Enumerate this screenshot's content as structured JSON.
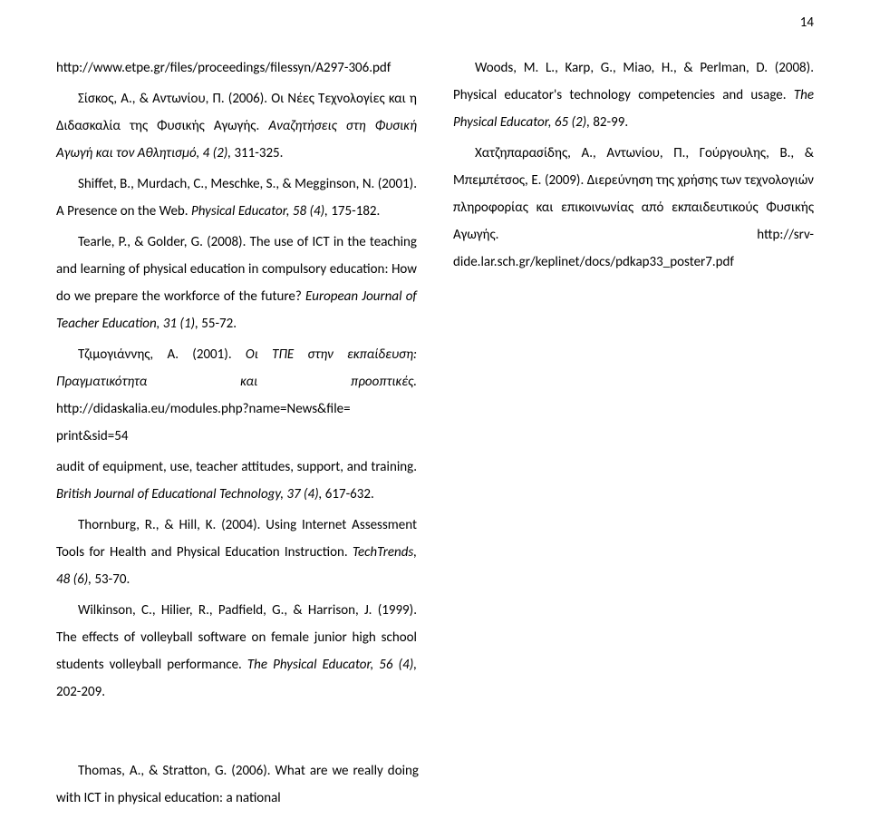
{
  "page_number": "14",
  "refs": [
    {
      "text": "http://www.etpe.gr/files/proceedings/filessyn/A297-306.pdf",
      "classes": "ref first no-indent"
    },
    {
      "text": "Σίσκος, Α., & Αντωνίου, Π. (2006). Οι Νέες Τεχνολογίες και η Διδασκαλία της Φυσικής Αγωγής. <span class=\"italic\">Αναζητήσεις στη Φυσική Αγωγή και τον Αθλητισμό, 4 (2),</span> 311-325.",
      "classes": "ref"
    },
    {
      "text": "Shiffet, B., Murdach, C., Meschke, S., & Megginson, N. (2001). A Presence on the Web. <span class=\"italic\">Physical Educator, 58 (4),</span> 175-182.",
      "classes": "ref"
    },
    {
      "text": "Tearle, P., & Golder, G. (2008). The use of ICT in the teaching and learning of physical education in compulsory education: How do we prepare the workforce of the future? <span class=\"italic\">European Journal of Teacher Education, 31 (1),</span> 55-72.",
      "classes": "ref"
    },
    {
      "text": "Τζιμογιάννης, Α. (2001). <span class=\"italic\">Οι ΤΠΕ στην εκπαίδευση: Πραγματικότητα και προοπτικές.</span> http://didaskalia.eu/modules.php?name=News&file= print&sid=54",
      "classes": "ref"
    },
    {
      "text": "audit of equipment, use, teacher attitudes, support, and training. <span class=\"italic\">British Journal of Educational Technology, 37 (4),</span> 617-632.",
      "classes": "ref no-indent"
    },
    {
      "text": "Thornburg, R., & Hill, K. (2004). Using Internet Assessment Tools for Health and Physical Education Instruction. <span class=\"italic\">TechTrends, 48 (6),</span> 53-70.",
      "classes": "ref"
    },
    {
      "text": "Wilkinson, C., Hilier, R., Padfield, G., & Harrison, J. (1999). The effects of volleyball software on female junior high school students volleyball performance. <span class=\"italic\">The Physical Educator, 56 (4),</span> 202-209.",
      "classes": "ref"
    },
    {
      "text": "Woods, M. L., Karp, G., Miao, H., & Perlman, D. (2008). Physical educator's technology competencies and usage. <span class=\"italic\">The Physical Educator, 65 (2),</span> 82-99.",
      "classes": "ref"
    },
    {
      "text": "Χατζηπαρασίδης, Α., Αντωνίου, Π., Γούργουλης, Β., & Μπεμπέτσος, Ε. (2009). Διερεύνηση της χρήσης των τεχνολογιών πληροφορίας και επικοινωνίας από εκπαιδευτικούς Φυσικής Αγωγής. http://srv-dide.lar.sch.gr/keplinet/docs/pdkap33_poster7.pdf",
      "classes": "ref"
    }
  ],
  "footer_ref": "Thomas, A., & Stratton, G. (2006). What are we really doing with ICT in physical education: a national"
}
